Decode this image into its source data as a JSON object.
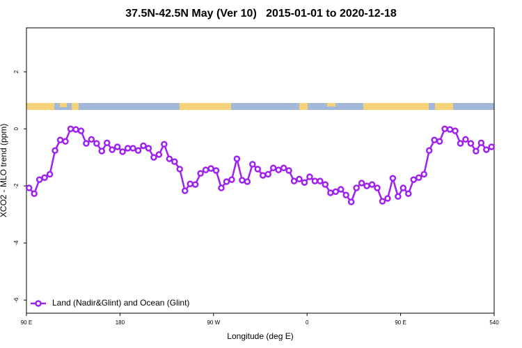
{
  "chart_data": {
    "type": "line",
    "title": "37.5N-42.5N May (Ver 10)   2015-01-01 to 2020-12-18",
    "xlabel": "Longitude (deg E)",
    "ylabel": "XCO2 - MLO trend (ppm)",
    "xlim": [
      90,
      540
    ],
    "xticks": [
      {
        "value": 90,
        "label": "90 E"
      },
      180,
      {
        "value": 270,
        "label": "90 W"
      },
      {
        "value": 360,
        "label": "0"
      },
      {
        "value": 450,
        "label": "90 E"
      },
      540
    ],
    "ylim": [
      -6.46,
      3.54
    ],
    "yticks": [
      2,
      0,
      -2,
      -4,
      -6
    ],
    "legend": "bottom-left",
    "x": [
      92.5,
      97.5,
      102.5,
      107.5,
      112.5,
      117.5,
      122.5,
      127.5,
      132.5,
      137.5,
      142.5,
      147.5,
      152.5,
      157.5,
      162.5,
      167.5,
      172.5,
      177.5,
      182.5,
      187.5,
      192.5,
      197.5,
      202.5,
      207.5,
      212.5,
      217.5,
      222.5,
      227.5,
      232.5,
      237.5,
      242.5,
      247.5,
      252.5,
      257.5,
      262.5,
      267.5,
      272.5,
      277.5,
      282.5,
      287.5,
      292.5,
      297.5,
      302.5,
      307.5,
      312.5,
      317.5,
      322.5,
      327.5,
      332.5,
      337.5,
      342.5,
      347.5,
      352.5,
      357.5,
      362.5,
      367.5,
      372.5,
      377.5,
      382.5,
      387.5,
      392.5,
      397.5,
      402.5,
      407.5,
      412.5,
      417.5,
      422.5,
      427.5,
      432.5,
      437.5,
      442.5,
      447.5,
      452.5,
      457.5,
      462.5,
      467.5,
      472.5,
      477.5,
      482.5,
      487.5,
      492.5,
      497.5,
      502.5,
      507.5,
      512.5,
      517.5,
      522.5,
      527.5,
      532.5,
      537.5
    ],
    "series": [
      {
        "name": "Land (Nadir&Glint) and Ocean (Glint)",
        "color": "#a020f0",
        "values": [
          -2.07,
          -2.27,
          -1.78,
          -1.71,
          -1.59,
          -0.76,
          -0.39,
          -0.44,
          0,
          -0.02,
          -0.07,
          -0.51,
          -0.37,
          -0.51,
          -0.78,
          -0.49,
          -0.73,
          -0.63,
          -0.8,
          -0.68,
          -0.68,
          -0.76,
          -0.59,
          -0.68,
          -1.0,
          -0.9,
          -0.54,
          -1.05,
          -1.15,
          -1.41,
          -2.17,
          -1.93,
          -1.95,
          -1.56,
          -1.44,
          -1.39,
          -1.46,
          -2.07,
          -1.85,
          -1.78,
          -1.05,
          -1.8,
          -1.85,
          -1.24,
          -1.41,
          -1.63,
          -1.59,
          -1.37,
          -1.44,
          -1.37,
          -1.46,
          -1.83,
          -1.76,
          -1.88,
          -1.68,
          -1.83,
          -1.83,
          -1.95,
          -2.24,
          -2.2,
          -2.12,
          -2.32,
          -2.56,
          -2.07,
          -1.9,
          -2.0,
          -1.95,
          -2.07,
          -2.54,
          -2.44,
          -1.73,
          -2.37,
          -2.07,
          -2.27,
          -1.78,
          -1.71,
          -1.59,
          -0.76,
          -0.39,
          -0.44,
          0,
          -0.02,
          -0.07,
          -0.51,
          -0.37,
          -0.51,
          -0.78,
          -0.49,
          -0.73,
          -0.63
        ]
      }
    ]
  }
}
